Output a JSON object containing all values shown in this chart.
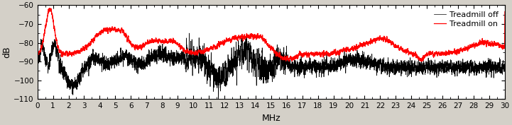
{
  "title": "",
  "xlabel": "MHz",
  "ylabel": "dB",
  "xlim": [
    0,
    30
  ],
  "ylim": [
    -110,
    -60
  ],
  "yticks": [
    -110,
    -100,
    -90,
    -80,
    -70,
    -60
  ],
  "xticks": [
    0,
    1,
    2,
    3,
    4,
    5,
    6,
    7,
    8,
    9,
    10,
    11,
    12,
    13,
    14,
    15,
    16,
    17,
    18,
    19,
    20,
    21,
    22,
    23,
    24,
    25,
    26,
    27,
    28,
    29,
    30
  ],
  "legend": [
    "Treadmill off",
    "Treadmill on"
  ],
  "line_colors": [
    "black",
    "red"
  ],
  "background_color": "#d4d0c8",
  "axes_color": "#ffffff",
  "seed": 7,
  "n_points": 6000,
  "linewidth_black": 0.5,
  "linewidth_red": 0.9
}
